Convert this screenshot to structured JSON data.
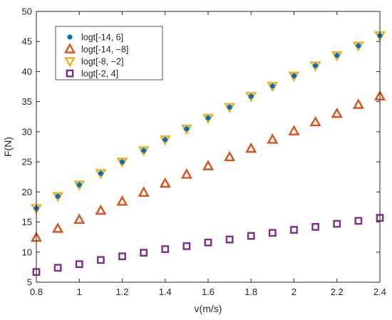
{
  "chart_data": {
    "type": "scatter",
    "xlabel": "v(m/s)",
    "ylabel": "F(N)",
    "xlim": [
      0.8,
      2.4
    ],
    "ylim": [
      5,
      50
    ],
    "x_ticks": [
      "0.8",
      "1",
      "1.2",
      "1.4",
      "1.6",
      "1.8",
      "2",
      "2.2",
      "2.4"
    ],
    "y_ticks": [
      "5",
      "10",
      "15",
      "20",
      "25",
      "30",
      "35",
      "40",
      "45",
      "50"
    ],
    "grid": false,
    "legend_position": "top-left",
    "x": [
      0.8,
      0.9,
      1.0,
      1.1,
      1.2,
      1.3,
      1.4,
      1.5,
      1.6,
      1.7,
      1.8,
      1.9,
      2.0,
      2.1,
      2.2,
      2.3,
      2.4
    ],
    "series": [
      {
        "name": "logt[-14, 6]",
        "marker": "circle",
        "color": "#0072BD",
        "values": [
          17.3,
          19.3,
          21.2,
          23.1,
          25.0,
          26.9,
          28.7,
          30.5,
          32.3,
          34.1,
          35.9,
          37.6,
          39.3,
          41.0,
          42.7,
          44.3,
          46.0
        ]
      },
      {
        "name": "logt[-14, −8]",
        "marker": "triangle-up",
        "color": "#D95319",
        "values": [
          12.4,
          13.9,
          15.4,
          16.9,
          18.4,
          19.9,
          21.4,
          22.9,
          24.3,
          25.8,
          27.2,
          28.7,
          30.1,
          31.6,
          33.0,
          34.5,
          35.9
        ]
      },
      {
        "name": "logt[-8, −2]",
        "marker": "triangle-down",
        "color": "#EDB120",
        "values": [
          17.3,
          19.3,
          21.2,
          23.1,
          25.0,
          26.9,
          28.7,
          30.5,
          32.3,
          34.1,
          35.9,
          37.6,
          39.3,
          41.0,
          42.7,
          44.3,
          46.0
        ]
      },
      {
        "name": "logt[-2, 4]",
        "marker": "square",
        "color": "#7E2F8E",
        "values": [
          6.7,
          7.4,
          8.0,
          8.7,
          9.3,
          9.9,
          10.5,
          11.0,
          11.6,
          12.1,
          12.7,
          13.2,
          13.7,
          14.2,
          14.7,
          15.2,
          15.7
        ]
      }
    ]
  }
}
